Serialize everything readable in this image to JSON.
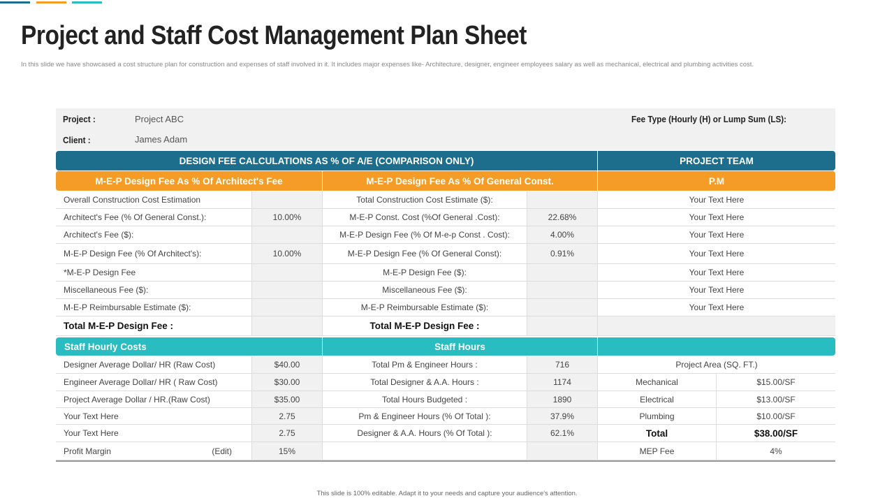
{
  "colors": {
    "blue": "#1c6e8c",
    "orange": "#f49c25",
    "teal": "#29bcc0"
  },
  "title": "Project and Staff Cost Management Plan Sheet",
  "subtitle": "In this slide we have showcased a cost structure plan for construction and expenses of staff involved in it. It includes major expenses like- Architecture, designer, engineer employees salary as well as mechanical, electrical and plumbing  activities cost.",
  "info": {
    "project_label": "Project :",
    "project_value": "Project ABC",
    "client_label": "Client :",
    "client_value": "James Adam",
    "fee_type_label": "Fee Type (Hourly (H) or Lump Sum (LS):"
  },
  "headers": {
    "design_fee": "DESIGN FEE CALCULATIONS AS % OF A/E (COMPARISON ONLY)",
    "project_team": "PROJECT TEAM",
    "arch_fee": "M-E-P Design Fee As % Of Architect's Fee",
    "gen_const": "M-E-P Design Fee As % Of General Const.",
    "pm": "P.M",
    "staff_costs": "Staff Hourly Costs",
    "staff_hours": "Staff Hours"
  },
  "design_rows": [
    {
      "a": "Overall Construction Cost Estimation",
      "av": "",
      "b": "Total Construction Cost Estimate ($):",
      "bv": "",
      "t": "Your Text Here"
    },
    {
      "a": "Architect's Fee (% Of General Const.):",
      "av": "10.00%",
      "b": "M-E-P Const. Cost (%Of General .Cost):",
      "bv": "22.68%",
      "t": "Your Text Here"
    },
    {
      "a": "Architect's Fee ($):",
      "av": "",
      "b": "M-E-P Design Fee (% Of  M-e-p Const . Cost):",
      "bv": "4.00%",
      "t": "Your Text Here"
    },
    {
      "a": "M-E-P Design Fee (% Of Architect's):",
      "av": "10.00%",
      "b": "M-E-P Design Fee (% Of General Const):",
      "bv": "0.91%",
      "t": "Your Text Here"
    },
    {
      "a": "*M-E-P Design Fee",
      "av": "",
      "b": "M-E-P Design Fee ($):",
      "bv": "",
      "t": "Your Text Here"
    },
    {
      "a": "Miscellaneous Fee ($):",
      "av": "",
      "b": "Miscellaneous Fee ($):",
      "bv": "",
      "t": "Your Text Here"
    },
    {
      "a": "M-E-P Reimbursable Estimate ($):",
      "av": "",
      "b": "M-E-P Reimbursable Estimate ($):",
      "bv": "",
      "t": "Your Text Here"
    }
  ],
  "totals": {
    "a": "Total M-E-P Design Fee :",
    "b": "Total M-E-P Design Fee :"
  },
  "project_area": "Project Area (SQ. FT.)",
  "staff_rows": [
    {
      "a": "Designer Average Dollar/ HR (Raw Cost)",
      "av": "$40.00",
      "b": "Total Pm & Engineer Hours :",
      "bv": "716",
      "k": "",
      "v": ""
    },
    {
      "a": "Engineer Average Dollar/ HR ( Raw Cost)",
      "av": "$30.00",
      "b": "Total Designer & A.A.  Hours :",
      "bv": "1174",
      "k": "Mechanical",
      "v": "$15.00/SF"
    },
    {
      "a": "Project Average  Dollar / HR.(Raw Cost)",
      "av": "$35.00",
      "b": "Total Hours Budgeted :",
      "bv": "1890",
      "k": "Electrical",
      "v": "$13.00/SF"
    },
    {
      "a": "Your Text Here",
      "av": "2.75",
      "b": "Pm & Engineer Hours (% Of Total ):",
      "bv": "37.9%",
      "k": "Plumbing",
      "v": "$10.00/SF"
    },
    {
      "a": "Your Text Here",
      "av": "2.75",
      "b": "Designer & A.A.  Hours (% Of Total ):",
      "bv": "62.1%",
      "k": "Total",
      "v": "$38.00/SF"
    },
    {
      "a": "Profit Margin",
      "edit": "(Edit)",
      "av": "15%",
      "b": "",
      "bv": "",
      "k": "MEP Fee",
      "v": "4%"
    }
  ],
  "footer": "This slide is 100% editable. Adapt it to your needs and capture your audience's attention."
}
